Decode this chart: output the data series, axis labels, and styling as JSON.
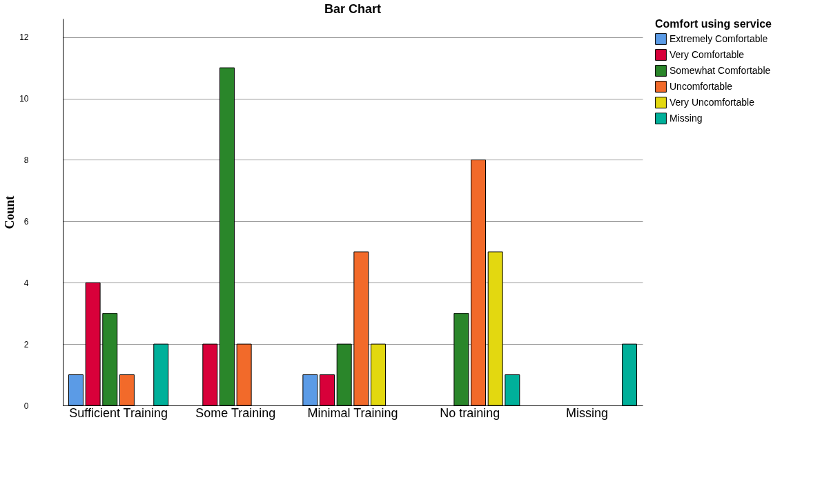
{
  "chart_data": {
    "type": "bar",
    "title": "Bar Chart",
    "ylabel": "Count",
    "legend_title": "Comfort using service",
    "categories": [
      "Sufficient Training",
      "Some Training",
      "Minimal Training",
      "No training",
      "Missing"
    ],
    "series": [
      {
        "name": "Extremely Comfortable",
        "color": "#5b9be6",
        "values": [
          1,
          null,
          1,
          null,
          null
        ]
      },
      {
        "name": "Very Comfortable",
        "color": "#d8003a",
        "values": [
          4,
          2,
          1,
          null,
          null
        ]
      },
      {
        "name": "Somewhat Comfortable",
        "color": "#2a862a",
        "values": [
          3,
          11,
          2,
          3,
          null
        ]
      },
      {
        "name": "Uncomfortable",
        "color": "#f26a2a",
        "values": [
          1,
          2,
          5,
          8,
          null
        ]
      },
      {
        "name": "Very Uncomfortable",
        "color": "#e3d810",
        "values": [
          null,
          null,
          2,
          5,
          null
        ]
      },
      {
        "name": "Missing",
        "color": "#00b09a",
        "values": [
          2,
          null,
          null,
          1,
          2
        ]
      }
    ],
    "ylim": [
      0,
      12.6
    ],
    "yticks": [
      0,
      2,
      4,
      6,
      8,
      10,
      12
    ],
    "grid": "y",
    "legend": "top right"
  }
}
